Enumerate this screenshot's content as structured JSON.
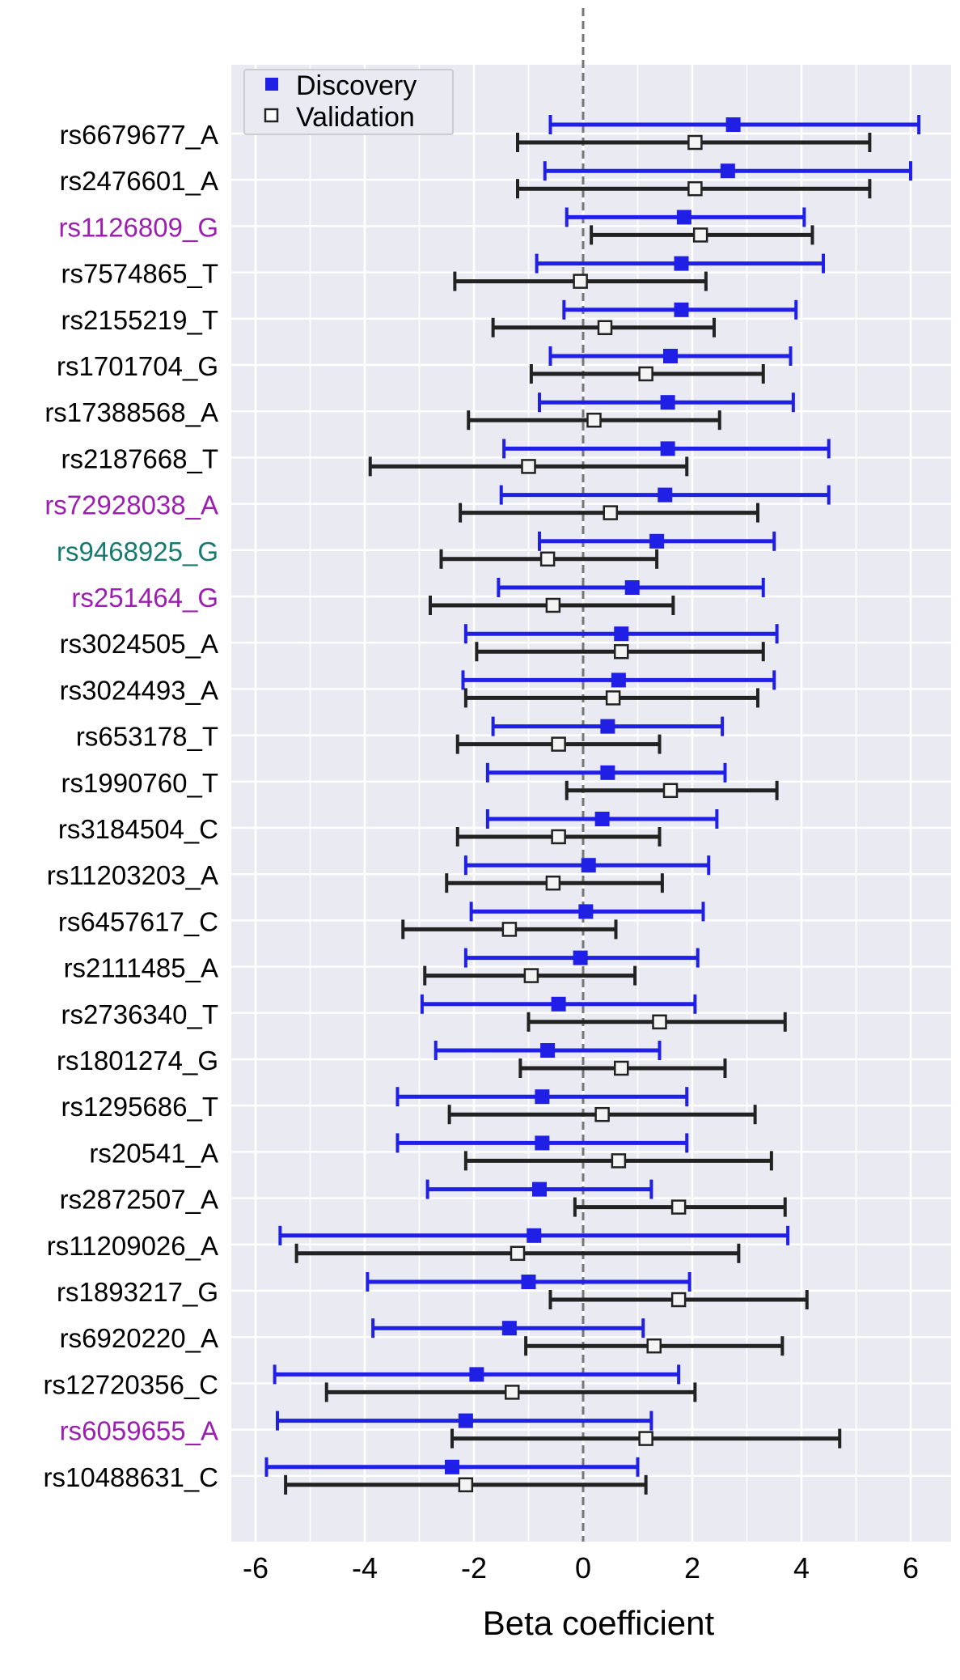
{
  "chart_data": {
    "type": "forest",
    "title": "",
    "xlabel": "Beta coefficient",
    "ylabel": "",
    "xlim": [
      -6.5,
      6.7
    ],
    "xticks": [
      -6,
      -4,
      -2,
      0,
      2,
      4,
      6
    ],
    "xtick_labels": [
      "-6",
      "-4",
      "-2",
      "0",
      "2",
      "4",
      "6"
    ],
    "reference_line": 0,
    "grid": true,
    "legend_position": "top-left",
    "series": [
      {
        "name": "Discovery",
        "color": "#1f1fe6",
        "marker": "filled-square"
      },
      {
        "name": "Validation",
        "color": "#222222",
        "marker": "open-square"
      }
    ],
    "rows": [
      {
        "label": "rs6679677_A",
        "label_color": "#000000",
        "discovery": {
          "beta": 2.75,
          "lo": -0.6,
          "hi": 6.15
        },
        "validation": {
          "beta": 2.05,
          "lo": -1.2,
          "hi": 5.25
        }
      },
      {
        "label": "rs2476601_A",
        "label_color": "#000000",
        "discovery": {
          "beta": 2.65,
          "lo": -0.7,
          "hi": 6.0
        },
        "validation": {
          "beta": 2.05,
          "lo": -1.2,
          "hi": 5.25
        }
      },
      {
        "label": "rs1126809_G",
        "label_color": "#9c1fb0",
        "discovery": {
          "beta": 1.85,
          "lo": -0.3,
          "hi": 4.05
        },
        "validation": {
          "beta": 2.15,
          "lo": 0.15,
          "hi": 4.2
        }
      },
      {
        "label": "rs7574865_T",
        "label_color": "#000000",
        "discovery": {
          "beta": 1.8,
          "lo": -0.85,
          "hi": 4.4
        },
        "validation": {
          "beta": -0.05,
          "lo": -2.35,
          "hi": 2.25
        }
      },
      {
        "label": "rs2155219_T",
        "label_color": "#000000",
        "discovery": {
          "beta": 1.8,
          "lo": -0.35,
          "hi": 3.9
        },
        "validation": {
          "beta": 0.4,
          "lo": -1.65,
          "hi": 2.4
        }
      },
      {
        "label": "rs1701704_G",
        "label_color": "#000000",
        "discovery": {
          "beta": 1.6,
          "lo": -0.6,
          "hi": 3.8
        },
        "validation": {
          "beta": 1.15,
          "lo": -0.95,
          "hi": 3.3
        }
      },
      {
        "label": "rs17388568_A",
        "label_color": "#000000",
        "discovery": {
          "beta": 1.55,
          "lo": -0.8,
          "hi": 3.85
        },
        "validation": {
          "beta": 0.2,
          "lo": -2.1,
          "hi": 2.5
        }
      },
      {
        "label": "rs2187668_T",
        "label_color": "#000000",
        "discovery": {
          "beta": 1.55,
          "lo": -1.45,
          "hi": 4.5
        },
        "validation": {
          "beta": -1.0,
          "lo": -3.9,
          "hi": 1.9
        }
      },
      {
        "label": "rs72928038_A",
        "label_color": "#9c1fb0",
        "discovery": {
          "beta": 1.5,
          "lo": -1.5,
          "hi": 4.5
        },
        "validation": {
          "beta": 0.5,
          "lo": -2.25,
          "hi": 3.2
        }
      },
      {
        "label": "rs9468925_G",
        "label_color": "#167a70",
        "discovery": {
          "beta": 1.35,
          "lo": -0.8,
          "hi": 3.5
        },
        "validation": {
          "beta": -0.65,
          "lo": -2.6,
          "hi": 1.35
        }
      },
      {
        "label": "rs251464_G",
        "label_color": "#9c1fb0",
        "discovery": {
          "beta": 0.9,
          "lo": -1.55,
          "hi": 3.3
        },
        "validation": {
          "beta": -0.55,
          "lo": -2.8,
          "hi": 1.65
        }
      },
      {
        "label": "rs3024505_A",
        "label_color": "#000000",
        "discovery": {
          "beta": 0.7,
          "lo": -2.15,
          "hi": 3.55
        },
        "validation": {
          "beta": 0.7,
          "lo": -1.95,
          "hi": 3.3
        }
      },
      {
        "label": "rs3024493_A",
        "label_color": "#000000",
        "discovery": {
          "beta": 0.65,
          "lo": -2.2,
          "hi": 3.5
        },
        "validation": {
          "beta": 0.55,
          "lo": -2.15,
          "hi": 3.2
        }
      },
      {
        "label": "rs653178_T",
        "label_color": "#000000",
        "discovery": {
          "beta": 0.45,
          "lo": -1.65,
          "hi": 2.55
        },
        "validation": {
          "beta": -0.45,
          "lo": -2.3,
          "hi": 1.4
        }
      },
      {
        "label": "rs1990760_T",
        "label_color": "#000000",
        "discovery": {
          "beta": 0.45,
          "lo": -1.75,
          "hi": 2.6
        },
        "validation": {
          "beta": 1.6,
          "lo": -0.3,
          "hi": 3.55
        }
      },
      {
        "label": "rs3184504_C",
        "label_color": "#000000",
        "discovery": {
          "beta": 0.35,
          "lo": -1.75,
          "hi": 2.45
        },
        "validation": {
          "beta": -0.45,
          "lo": -2.3,
          "hi": 1.4
        }
      },
      {
        "label": "rs11203203_A",
        "label_color": "#000000",
        "discovery": {
          "beta": 0.1,
          "lo": -2.15,
          "hi": 2.3
        },
        "validation": {
          "beta": -0.55,
          "lo": -2.5,
          "hi": 1.45
        }
      },
      {
        "label": "rs6457617_C",
        "label_color": "#000000",
        "discovery": {
          "beta": 0.05,
          "lo": -2.05,
          "hi": 2.2
        },
        "validation": {
          "beta": -1.35,
          "lo": -3.3,
          "hi": 0.6
        }
      },
      {
        "label": "rs2111485_A",
        "label_color": "#000000",
        "discovery": {
          "beta": -0.05,
          "lo": -2.15,
          "hi": 2.1
        },
        "validation": {
          "beta": -0.95,
          "lo": -2.9,
          "hi": 0.95
        }
      },
      {
        "label": "rs2736340_T",
        "label_color": "#000000",
        "discovery": {
          "beta": -0.45,
          "lo": -2.95,
          "hi": 2.05
        },
        "validation": {
          "beta": 1.4,
          "lo": -1.0,
          "hi": 3.7
        }
      },
      {
        "label": "rs1801274_G",
        "label_color": "#000000",
        "discovery": {
          "beta": -0.65,
          "lo": -2.7,
          "hi": 1.4
        },
        "validation": {
          "beta": 0.7,
          "lo": -1.15,
          "hi": 2.6
        }
      },
      {
        "label": "rs1295686_T",
        "label_color": "#000000",
        "discovery": {
          "beta": -0.75,
          "lo": -3.4,
          "hi": 1.9
        },
        "validation": {
          "beta": 0.35,
          "lo": -2.45,
          "hi": 3.15
        }
      },
      {
        "label": "rs20541_A",
        "label_color": "#000000",
        "discovery": {
          "beta": -0.75,
          "lo": -3.4,
          "hi": 1.9
        },
        "validation": {
          "beta": 0.65,
          "lo": -2.15,
          "hi": 3.45
        }
      },
      {
        "label": "rs2872507_A",
        "label_color": "#000000",
        "discovery": {
          "beta": -0.8,
          "lo": -2.85,
          "hi": 1.25
        },
        "validation": {
          "beta": 1.75,
          "lo": -0.15,
          "hi": 3.7
        }
      },
      {
        "label": "rs11209026_A",
        "label_color": "#000000",
        "discovery": {
          "beta": -0.9,
          "lo": -5.55,
          "hi": 3.75
        },
        "validation": {
          "beta": -1.2,
          "lo": -5.25,
          "hi": 2.85
        }
      },
      {
        "label": "rs1893217_G",
        "label_color": "#000000",
        "discovery": {
          "beta": -1.0,
          "lo": -3.95,
          "hi": 1.95
        },
        "validation": {
          "beta": 1.75,
          "lo": -0.6,
          "hi": 4.1
        }
      },
      {
        "label": "rs6920220_A",
        "label_color": "#000000",
        "discovery": {
          "beta": -1.35,
          "lo": -3.85,
          "hi": 1.1
        },
        "validation": {
          "beta": 1.3,
          "lo": -1.05,
          "hi": 3.65
        }
      },
      {
        "label": "rs12720356_C",
        "label_color": "#000000",
        "discovery": {
          "beta": -1.95,
          "lo": -5.65,
          "hi": 1.75
        },
        "validation": {
          "beta": -1.3,
          "lo": -4.7,
          "hi": 2.05
        }
      },
      {
        "label": "rs6059655_A",
        "label_color": "#9c1fb0",
        "discovery": {
          "beta": -2.15,
          "lo": -5.6,
          "hi": 1.25
        },
        "validation": {
          "beta": 1.15,
          "lo": -2.4,
          "hi": 4.7
        }
      },
      {
        "label": "rs10488631_C",
        "label_color": "#000000",
        "discovery": {
          "beta": -2.4,
          "lo": -5.8,
          "hi": 1.0
        },
        "validation": {
          "beta": -2.15,
          "lo": -5.45,
          "hi": 1.15
        }
      }
    ]
  }
}
